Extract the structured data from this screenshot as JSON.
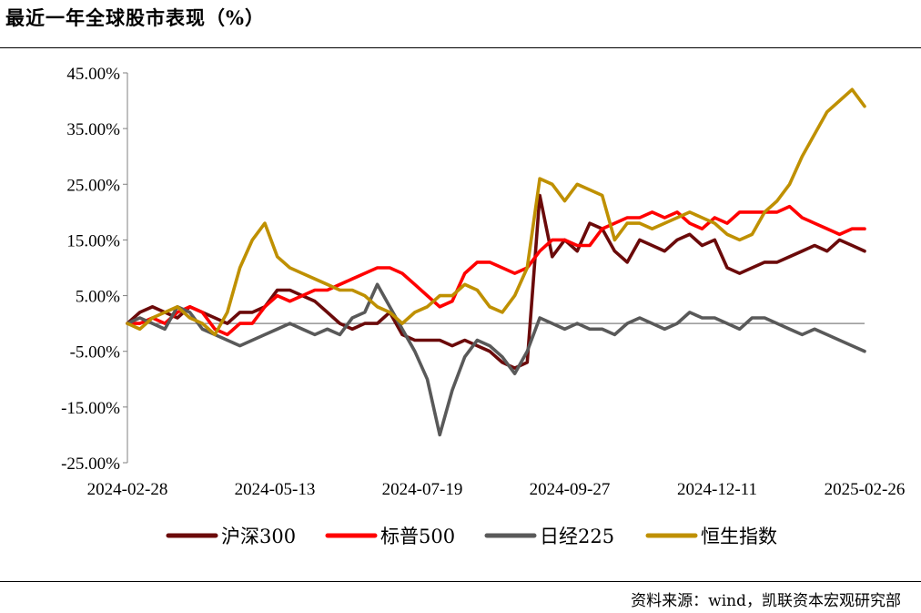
{
  "title": "最近一年全球股市表现（%）",
  "source": "资料来源：wind，凯联资本宏观研究部",
  "chart_data": {
    "type": "line",
    "title": "最近一年全球股市表现（%）",
    "xlabel": "",
    "ylabel": "",
    "ylim": [
      -25,
      45
    ],
    "yticks": [
      45,
      35,
      25,
      15,
      5,
      -5,
      -15,
      -25
    ],
    "ytick_labels": [
      "45.00%",
      "35.00%",
      "25.00%",
      "15.00%",
      "5.00%",
      "-5.00%",
      "-15.00%",
      "-25.00%"
    ],
    "xtick_labels": [
      "2024-02-28",
      "2024-05-13",
      "2024-07-19",
      "2024-09-27",
      "2024-12-11",
      "2025-02-26"
    ],
    "grid": false,
    "legend_position": "bottom",
    "x": [
      "2024-02-28",
      "2024-03-06",
      "2024-03-13",
      "2024-03-20",
      "2024-03-27",
      "2024-04-03",
      "2024-04-10",
      "2024-04-17",
      "2024-04-24",
      "2024-05-01",
      "2024-05-08",
      "2024-05-13",
      "2024-05-20",
      "2024-05-27",
      "2024-06-03",
      "2024-06-10",
      "2024-06-17",
      "2024-06-24",
      "2024-07-01",
      "2024-07-08",
      "2024-07-15",
      "2024-07-19",
      "2024-07-26",
      "2024-08-02",
      "2024-08-05",
      "2024-08-09",
      "2024-08-16",
      "2024-08-23",
      "2024-08-30",
      "2024-09-06",
      "2024-09-13",
      "2024-09-18",
      "2024-09-24",
      "2024-09-27",
      "2024-10-08",
      "2024-10-15",
      "2024-10-22",
      "2024-10-29",
      "2024-11-05",
      "2024-11-12",
      "2024-11-19",
      "2024-11-26",
      "2024-12-03",
      "2024-12-11",
      "2024-12-18",
      "2024-12-25",
      "2025-01-01",
      "2025-01-08",
      "2025-01-13",
      "2025-01-20",
      "2025-01-27",
      "2025-02-03",
      "2025-02-10",
      "2025-02-17",
      "2025-02-24",
      "2025-02-26",
      "2025-03-05",
      "2025-03-12",
      "2025-03-17",
      "2025-03-19"
    ],
    "series": [
      {
        "name": "沪深300",
        "color": "#6b0a0a",
        "values": [
          0,
          2,
          3,
          2,
          1,
          3,
          2,
          1,
          0,
          2,
          2,
          3,
          6,
          6,
          5,
          4,
          2,
          0,
          -1,
          0,
          0,
          2,
          -2,
          -3,
          -3,
          -3,
          -4,
          -3,
          -4,
          -5,
          -7,
          -8,
          -7,
          23,
          12,
          15,
          13,
          18,
          17,
          13,
          11,
          15,
          14,
          13,
          15,
          16,
          14,
          15,
          10,
          9,
          10,
          11,
          11,
          12,
          13,
          14,
          13,
          15,
          14,
          13
        ]
      },
      {
        "name": "标普500",
        "color": "#ff0000",
        "values": [
          0,
          0,
          1,
          0,
          2,
          3,
          2,
          -1,
          -2,
          0,
          0,
          3,
          5,
          4,
          5,
          6,
          6,
          7,
          8,
          9,
          10,
          10,
          9,
          7,
          5,
          3,
          4,
          9,
          11,
          11,
          10,
          9,
          10,
          13,
          15,
          15,
          14,
          14,
          17,
          18,
          19,
          19,
          20,
          19,
          20,
          18,
          17,
          19,
          18,
          20,
          20,
          20,
          20,
          21,
          19,
          18,
          17,
          16,
          17,
          17
        ]
      },
      {
        "name": "日经225",
        "color": "#595959",
        "values": [
          0,
          1,
          0,
          -1,
          3,
          2,
          -1,
          -2,
          -3,
          -4,
          -3,
          -2,
          -1,
          0,
          -1,
          -2,
          -1,
          -2,
          1,
          2,
          7,
          3,
          -1,
          -5,
          -10,
          -20,
          -12,
          -6,
          -3,
          -4,
          -6,
          -9,
          -5,
          1,
          0,
          -1,
          0,
          -1,
          -1,
          -2,
          0,
          1,
          0,
          -1,
          0,
          2,
          1,
          1,
          0,
          -1,
          1,
          1,
          0,
          -1,
          -2,
          -1,
          -2,
          -3,
          -4,
          -5
        ]
      },
      {
        "name": "恒生指数",
        "color": "#bf9000",
        "values": [
          0,
          -1,
          1,
          2,
          3,
          1,
          0,
          -2,
          2,
          10,
          15,
          18,
          12,
          10,
          9,
          8,
          7,
          6,
          6,
          5,
          3,
          2,
          0,
          2,
          3,
          5,
          5,
          7,
          6,
          3,
          2,
          5,
          10,
          26,
          25,
          22,
          25,
          24,
          23,
          15,
          18,
          18,
          17,
          18,
          19,
          20,
          19,
          18,
          16,
          15,
          16,
          20,
          22,
          25,
          30,
          34,
          38,
          40,
          42,
          39
        ]
      }
    ]
  }
}
